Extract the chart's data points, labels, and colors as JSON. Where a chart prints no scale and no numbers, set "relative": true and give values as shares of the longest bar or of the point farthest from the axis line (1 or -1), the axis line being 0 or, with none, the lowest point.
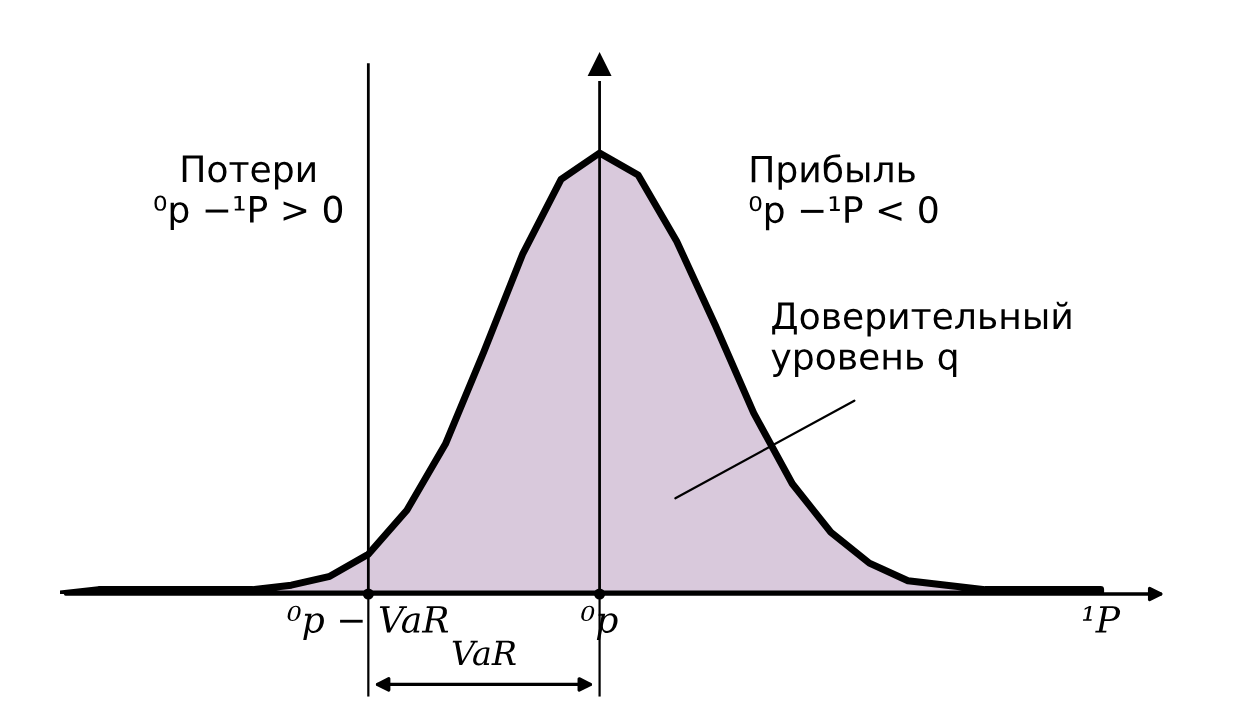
{
  "chart_data": {
    "type": "area",
    "relative": true,
    "categories": [
      null,
      null,
      null,
      null,
      null,
      null,
      null,
      null,
      "⁰p − VaR",
      null,
      null,
      null,
      null,
      null,
      "⁰p",
      null,
      null,
      null,
      null,
      null,
      null,
      null,
      null,
      null,
      null,
      null,
      null,
      "¹P"
    ],
    "series": [
      {
        "color": "#d9c9dc",
        "values": [
          0,
          0.01,
          0.01,
          0.01,
          0.01,
          0.01,
          0.02,
          0.04,
          0.09,
          0.19,
          0.34,
          0.55,
          0.77,
          0.94,
          1,
          0.95,
          0.8,
          0.61,
          0.41,
          0.25,
          0.14,
          0.07,
          0.03,
          0.02,
          0.01,
          0.01,
          0.01,
          0.01
        ]
      }
    ],
    "ref_lines": [
      {
        "axis": "x",
        "value": "⁰p − VaR"
      },
      {
        "axis": "x",
        "value": "⁰p"
      }
    ],
    "annotations": [
      "Потери\n⁰p −¹P > 0",
      "Прибыль\n⁰p −¹P < 0",
      "Доверительный\nуровень q",
      "VaR"
    ],
    "grid": false,
    "legend": false
  }
}
